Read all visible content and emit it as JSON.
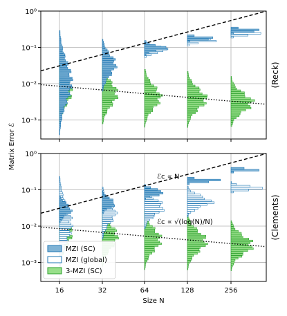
{
  "chart_data": {
    "type": "histogram",
    "ylabel": "Matrix Error ℰ",
    "xlabel": "Size N",
    "x_categories": [
      "16",
      "32",
      "64",
      "128",
      "256"
    ],
    "y_scale": "log",
    "ylim": [
      0.0003,
      1
    ],
    "y_ticks": [
      {
        "value": 1,
        "label": "10⁰"
      },
      {
        "value": 0.1,
        "label": "10⁻¹"
      },
      {
        "value": 0.01,
        "label": "10⁻²"
      },
      {
        "value": 0.001,
        "label": "10⁻³"
      }
    ],
    "grid": true,
    "colors": {
      "mzi_sc": "#1f77b4",
      "mzi_sc_fill": "#7fb3d5",
      "mzi_global_edge": "#1f77b4",
      "mzi_global_fill": "#ffffff",
      "mzi3_sc": "#2ca02c",
      "mzi3_sc_fill": "#98df8a",
      "grid": "#b0b0b0"
    },
    "legend": {
      "placement": "lower-left",
      "panel": "Clements",
      "entries": [
        {
          "name": "MZI (SC)",
          "style": "mzi_sc"
        },
        {
          "name": "MZI (global)",
          "style": "mzi_global"
        },
        {
          "name": "3-MZI (SC)",
          "style": "mzi3_sc"
        }
      ]
    },
    "panels": [
      {
        "label": "(Reck)",
        "annotations": [],
        "trend_lines": [
          {
            "style": "dashed",
            "from": {
              "x": "16",
              "y": 0.031
            },
            "to": {
              "x": "256",
              "y": 0.55
            }
          },
          {
            "style": "dotted",
            "from": {
              "x": "16",
              "y": 0.0085
            },
            "to": {
              "x": "256",
              "y": 0.0033
            }
          }
        ],
        "distributions": [
          {
            "x": "16",
            "series": [
              {
                "style": "mzi3_sc",
                "center": 0.0065,
                "spread": 0.35,
                "peak": 0.45
              },
              {
                "style": "mzi_sc",
                "center": 0.012,
                "spread": 0.55,
                "peak": 0.45
              }
            ]
          },
          {
            "x": "32",
            "series": [
              {
                "style": "mzi3_sc",
                "center": 0.0055,
                "spread": 0.32,
                "peak": 0.55
              },
              {
                "style": "mzi_sc",
                "center": 0.035,
                "spread": 0.28,
                "peak": 0.5
              }
            ]
          },
          {
            "x": "64",
            "series": [
              {
                "style": "mzi3_sc",
                "center": 0.0045,
                "spread": 0.3,
                "peak": 0.6
              },
              {
                "style": "mzi_global",
                "center": 0.09,
                "spread": 0.08,
                "peak": 0.9
              },
              {
                "style": "mzi_sc",
                "center": 0.1,
                "spread": 0.08,
                "peak": 0.8
              }
            ]
          },
          {
            "x": "128",
            "series": [
              {
                "style": "mzi3_sc",
                "center": 0.004,
                "spread": 0.28,
                "peak": 0.7
              },
              {
                "style": "mzi_global",
                "center": 0.16,
                "spread": 0.05,
                "peak": 1.1
              },
              {
                "style": "mzi_sc",
                "center": 0.19,
                "spread": 0.04,
                "peak": 1.2
              }
            ]
          },
          {
            "x": "256",
            "series": [
              {
                "style": "mzi3_sc",
                "center": 0.0032,
                "spread": 0.25,
                "peak": 0.8
              },
              {
                "style": "mzi_global",
                "center": 0.25,
                "spread": 0.04,
                "peak": 1.3
              },
              {
                "style": "mzi_sc",
                "center": 0.31,
                "spread": 0.04,
                "peak": 1.3
              }
            ]
          }
        ]
      },
      {
        "label": "(Clements)",
        "annotations": [
          {
            "text": "ℰc ∝ N",
            "near": {
              "x": "64",
              "y": 0.17
            }
          },
          {
            "text": "ℰc ∝ √(log(N)/N)",
            "near": {
              "x": "64",
              "y": 0.0095
            }
          }
        ],
        "trend_lines": [
          {
            "style": "dashed",
            "from": {
              "x": "16",
              "y": 0.031
            },
            "to": {
              "x": "256",
              "y": 0.55
            }
          },
          {
            "style": "dotted",
            "from": {
              "x": "16",
              "y": 0.0085
            },
            "to": {
              "x": "256",
              "y": 0.0033
            }
          }
        ],
        "distributions": [
          {
            "x": "16",
            "series": [
              {
                "style": "mzi3_sc",
                "center": 0.0065,
                "spread": 0.35,
                "peak": 0.45
              },
              {
                "style": "mzi_global",
                "center": 0.012,
                "spread": 0.5,
                "peak": 0.45
              },
              {
                "style": "mzi_sc",
                "center": 0.03,
                "spread": 0.15,
                "peak": 0.45
              }
            ]
          },
          {
            "x": "32",
            "series": [
              {
                "style": "mzi3_sc",
                "center": 0.0055,
                "spread": 0.32,
                "peak": 0.55
              },
              {
                "style": "mzi_global",
                "center": 0.025,
                "spread": 0.28,
                "peak": 0.5
              },
              {
                "style": "mzi_sc",
                "center": 0.045,
                "spread": 0.12,
                "peak": 0.5
              }
            ]
          },
          {
            "x": "64",
            "series": [
              {
                "style": "mzi3_sc",
                "center": 0.0045,
                "spread": 0.3,
                "peak": 0.6
              },
              {
                "style": "mzi_global",
                "center": 0.035,
                "spread": 0.22,
                "peak": 0.7
              },
              {
                "style": "mzi_sc",
                "center": 0.09,
                "spread": 0.08,
                "peak": 0.8
              }
            ]
          },
          {
            "x": "128",
            "series": [
              {
                "style": "mzi3_sc",
                "center": 0.004,
                "spread": 0.28,
                "peak": 0.7
              },
              {
                "style": "mzi_global",
                "center": 0.05,
                "spread": 0.15,
                "peak": 0.9
              },
              {
                "style": "mzi_sc",
                "center": 0.19,
                "spread": 0.04,
                "peak": 1.2
              }
            ]
          },
          {
            "x": "256",
            "series": [
              {
                "style": "mzi3_sc",
                "center": 0.0032,
                "spread": 0.25,
                "peak": 0.8
              },
              {
                "style": "mzi_global",
                "center": 0.12,
                "spread": 0.05,
                "peak": 1.3
              },
              {
                "style": "mzi_sc",
                "center": 0.38,
                "spread": 0.03,
                "peak": 1.3
              }
            ]
          }
        ]
      }
    ]
  }
}
